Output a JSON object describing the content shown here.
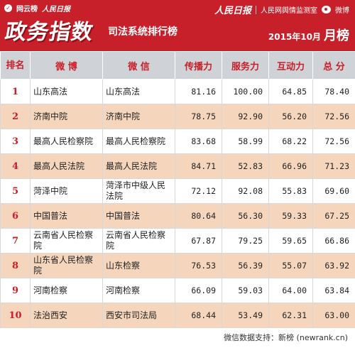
{
  "banner": {
    "source_logo": "网云榜",
    "source_logo2": "人民日报",
    "brand": "政务指数",
    "subtitle": "司法系统排行榜",
    "partner_rmrb": "人民日报",
    "partner_monitor": "人民网舆情监测室",
    "partner_weibo": "微博",
    "date": "2015年10月",
    "kind": "月榜"
  },
  "table": {
    "headers": {
      "rank": "排名",
      "weibo": "微 博",
      "weixin": "微 信",
      "spread": "传播力",
      "service": "服务力",
      "interact": "互动力",
      "total": "总 分"
    },
    "rows": [
      {
        "rank": "1",
        "weibo": "山东高法",
        "weixin": "山东高法",
        "spread": "81.16",
        "service": "100.00",
        "interact": "64.85",
        "total": "78.40"
      },
      {
        "rank": "2",
        "weibo": "济南中院",
        "weixin": "济南中院",
        "spread": "78.75",
        "service": "92.90",
        "interact": "56.20",
        "total": "72.56"
      },
      {
        "rank": "3",
        "weibo": "最高人民检察院",
        "weixin": "最高人民检察院",
        "spread": "83.68",
        "service": "58.99",
        "interact": "68.22",
        "total": "72.56"
      },
      {
        "rank": "4",
        "weibo": "最高人民法院",
        "weixin": "最高人民法院",
        "spread": "84.71",
        "service": "52.83",
        "interact": "66.96",
        "total": "71.23"
      },
      {
        "rank": "5",
        "weibo": "菏泽中院",
        "weixin": "菏泽市中级人民法院",
        "spread": "72.12",
        "service": "92.08",
        "interact": "55.83",
        "total": "69.60"
      },
      {
        "rank": "6",
        "weibo": "中国普法",
        "weixin": "中国普法",
        "spread": "80.64",
        "service": "56.30",
        "interact": "59.33",
        "total": "67.25"
      },
      {
        "rank": "7",
        "weibo": "云南省人民检察院",
        "weixin": "云南省人民检察院",
        "spread": "67.87",
        "service": "79.25",
        "interact": "59.65",
        "total": "66.86"
      },
      {
        "rank": "8",
        "weibo": "山东省人民检察院",
        "weixin": "山东检察",
        "spread": "76.53",
        "service": "56.39",
        "interact": "55.07",
        "total": "63.92"
      },
      {
        "rank": "9",
        "weibo": "河南检察",
        "weixin": "河南检察",
        "spread": "66.09",
        "service": "59.03",
        "interact": "64.00",
        "total": "63.84"
      },
      {
        "rank": "10",
        "weibo": "法治西安",
        "weixin": "西安市司法局",
        "spread": "68.44",
        "service": "53.49",
        "interact": "62.31",
        "total": "63.00"
      }
    ]
  },
  "footer": {
    "credit": "微信数据支持：新榜 (newrank.cn)"
  },
  "colors": {
    "brand_red": "#c8202a",
    "header_gray": "#cfd2d6",
    "stripe_peach": "#f5d6bd"
  }
}
